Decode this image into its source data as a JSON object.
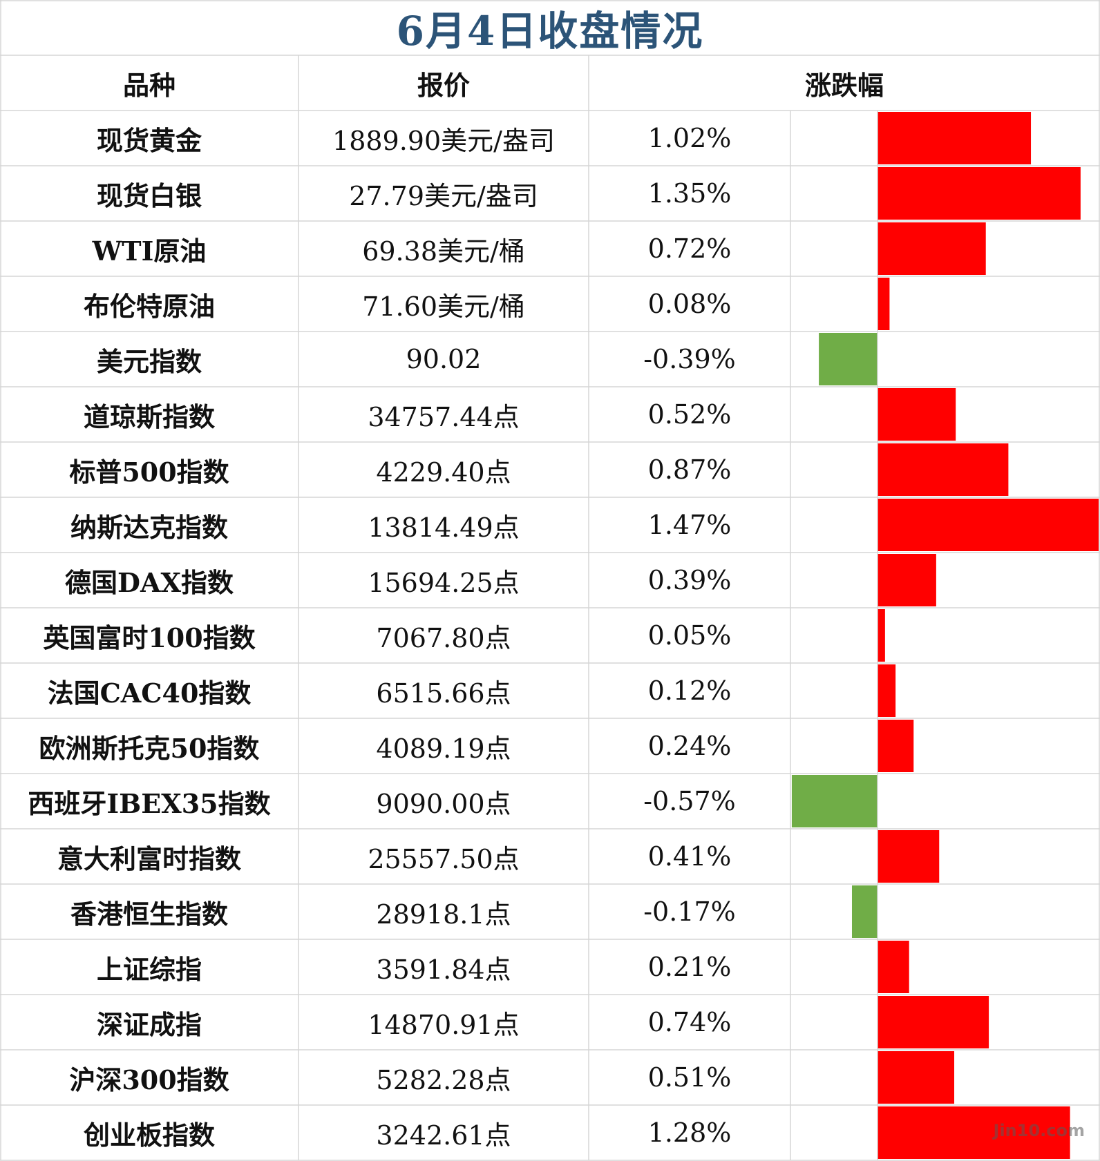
{
  "title": "6月4日收盘情况",
  "headers": {
    "name": "品种",
    "price": "报价",
    "change": "涨跌幅"
  },
  "colors": {
    "up": "#ff0000",
    "down": "#70ad47",
    "title": "#2c5478",
    "grid": "#d6d6d6"
  },
  "chart_data": {
    "type": "bar",
    "orientation": "horizontal",
    "categories": [
      "现货黄金",
      "现货白银",
      "WTI原油",
      "布伦特原油",
      "美元指数",
      "道琼斯指数",
      "标普500指数",
      "纳斯达克指数",
      "德国DAX指数",
      "英国富时100指数",
      "法国CAC40指数",
      "欧洲斯托克50指数",
      "西班牙IBEX35指数",
      "意大利富时指数",
      "香港恒生指数",
      "上证综指",
      "深证成指",
      "沪深300指数",
      "创业板指数"
    ],
    "values": [
      1.02,
      1.35,
      0.72,
      0.08,
      -0.39,
      0.52,
      0.87,
      1.47,
      0.39,
      0.05,
      0.12,
      0.24,
      -0.57,
      0.41,
      -0.17,
      0.21,
      0.74,
      0.51,
      1.28
    ],
    "value_unit": "%"
  },
  "rows": [
    {
      "name": "现货黄金",
      "price": "1889.90美元/盎司",
      "change": "1.02%"
    },
    {
      "name": "现货白银",
      "price": "27.79美元/盎司",
      "change": "1.35%"
    },
    {
      "name": "WTI原油",
      "price": "69.38美元/桶",
      "change": "0.72%"
    },
    {
      "name": "布伦特原油",
      "price": "71.60美元/桶",
      "change": "0.08%"
    },
    {
      "name": "美元指数",
      "price": "90.02",
      "change": "-0.39%"
    },
    {
      "name": "道琼斯指数",
      "price": "34757.44点",
      "change": "0.52%"
    },
    {
      "name": "标普500指数",
      "price": "4229.40点",
      "change": "0.87%"
    },
    {
      "name": "纳斯达克指数",
      "price": "13814.49点",
      "change": "1.47%"
    },
    {
      "name": "德国DAX指数",
      "price": "15694.25点",
      "change": "0.39%"
    },
    {
      "name": "英国富时100指数",
      "price": "7067.80点",
      "change": "0.05%"
    },
    {
      "name": "法国CAC40指数",
      "price": "6515.66点",
      "change": "0.12%"
    },
    {
      "name": "欧洲斯托克50指数",
      "price": "4089.19点",
      "change": "0.24%"
    },
    {
      "name": "西班牙IBEX35指数",
      "price": "9090.00点",
      "change": "-0.57%"
    },
    {
      "name": "意大利富时指数",
      "price": "25557.50点",
      "change": "0.41%"
    },
    {
      "name": "香港恒生指数",
      "price": "28918.1点",
      "change": "-0.17%"
    },
    {
      "name": "上证综指",
      "price": "3591.84点",
      "change": "0.21%"
    },
    {
      "name": "深证成指",
      "price": "14870.91点",
      "change": "0.74%"
    },
    {
      "name": "沪深300指数",
      "price": "5282.28点",
      "change": "0.51%"
    },
    {
      "name": "创业板指数",
      "price": "3242.61点",
      "change": "1.28%"
    }
  ],
  "watermark": "Jin10.com"
}
